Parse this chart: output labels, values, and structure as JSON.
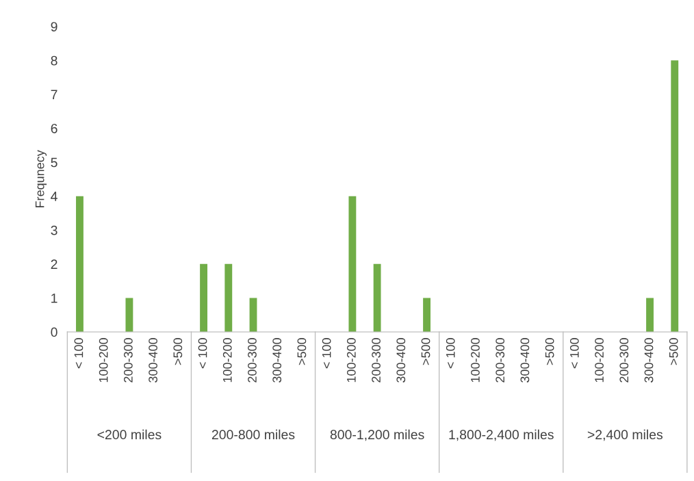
{
  "chart_data": {
    "type": "bar",
    "ylabel": "Frequnecy",
    "categories": [
      "< 100",
      "100-200",
      "200-300",
      "300-400",
      ">500",
      "< 100",
      "100-200",
      "200-300",
      "300-400",
      ">500",
      "< 100",
      "100-200",
      "200-300",
      "300-400",
      ">500",
      "< 100",
      "100-200",
      "200-300",
      "300-400",
      ">500",
      "< 100",
      "100-200",
      "200-300",
      "300-400",
      ">500"
    ],
    "values": [
      4,
      0,
      1,
      0,
      0,
      2,
      2,
      1,
      0,
      0,
      0,
      4,
      2,
      0,
      1,
      0,
      0,
      0,
      0,
      0,
      0,
      0,
      0,
      1,
      8
    ],
    "color": "#70ad47",
    "annotations": [
      "<200 miles",
      "200-800 miles",
      "800-1,200 miles",
      "1,800-2,400 miles",
      ">2,400 miles"
    ],
    "ylim": [
      0,
      9
    ],
    "yticks": [
      0,
      1,
      2,
      3,
      4,
      5,
      6,
      7,
      8,
      9
    ],
    "grid": false,
    "legend": false
  }
}
